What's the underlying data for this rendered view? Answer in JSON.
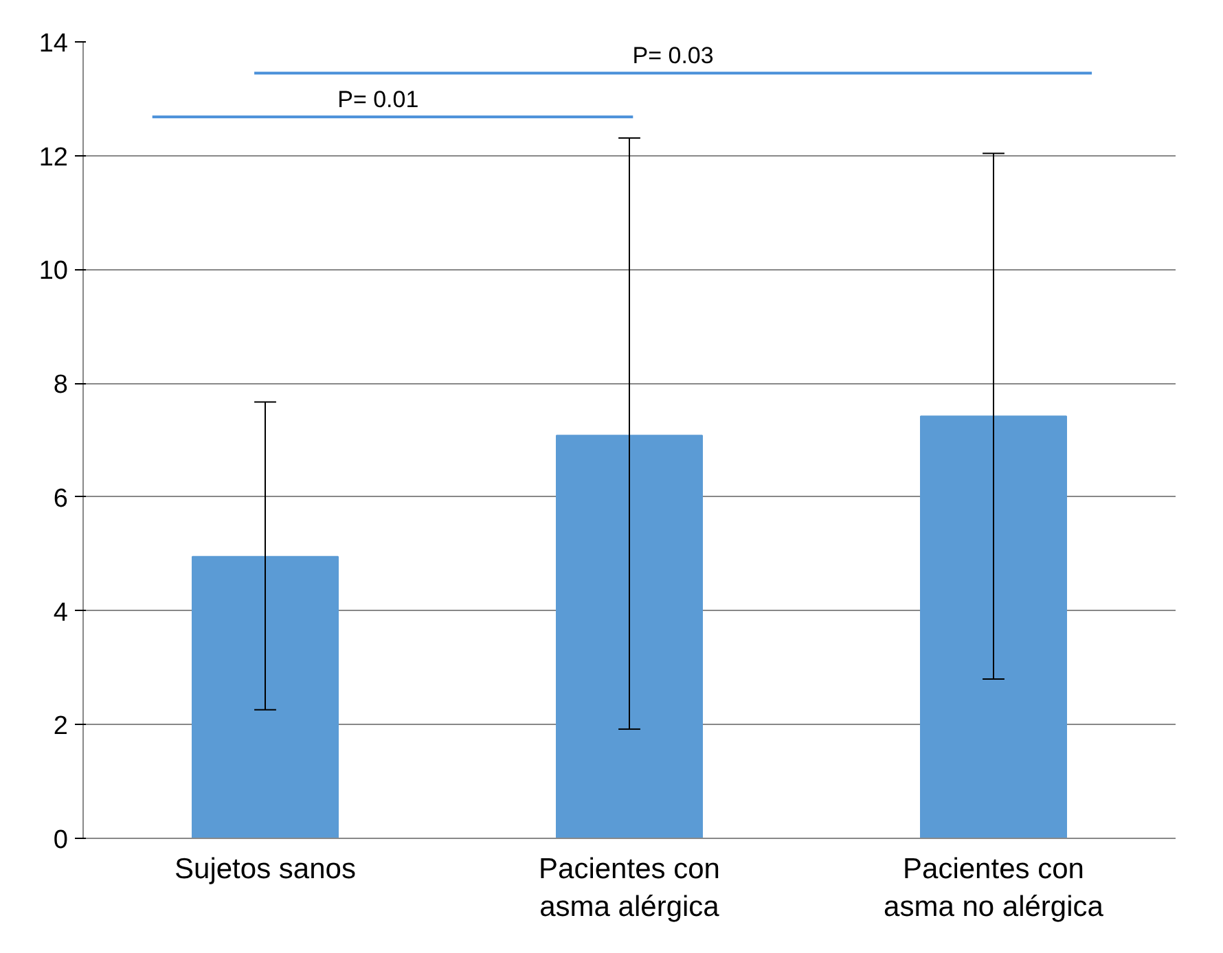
{
  "chart_data": {
    "type": "bar",
    "categories": [
      "Sujetos sanos",
      "Pacientes con\nasma alérgica",
      "Pacientes con\nasma no alérgica"
    ],
    "values": [
      4.95,
      7.08,
      7.42
    ],
    "color": "#5b9bd5",
    "errors": [
      [
        2.26,
        7.67
      ],
      [
        1.92,
        12.31
      ],
      [
        2.8,
        12.04
      ]
    ],
    "ylim": [
      0,
      14
    ],
    "yticks": [
      0,
      2,
      4,
      6,
      8,
      10,
      12,
      14
    ],
    "grid": "y",
    "annotations": [
      "P= 0.01",
      "P= 0.03"
    ]
  }
}
